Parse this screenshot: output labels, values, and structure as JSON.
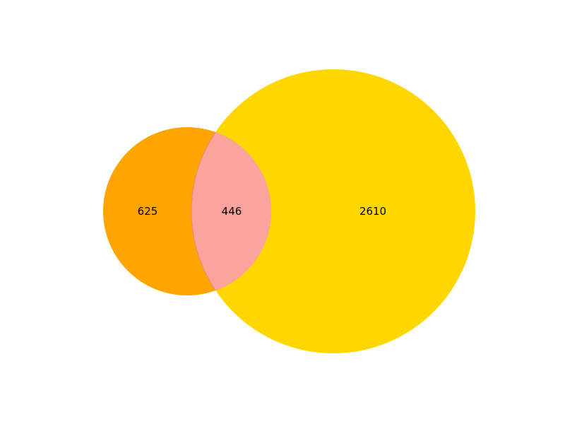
{
  "venn": {
    "regions": {
      "only_a": "625",
      "both": "446",
      "only_b": "2610"
    },
    "colors": {
      "set_a": "#FFA500",
      "set_b": "#FFD700",
      "intersection": "#FAA49D",
      "intersection_edge": "#F08A6A"
    }
  }
}
